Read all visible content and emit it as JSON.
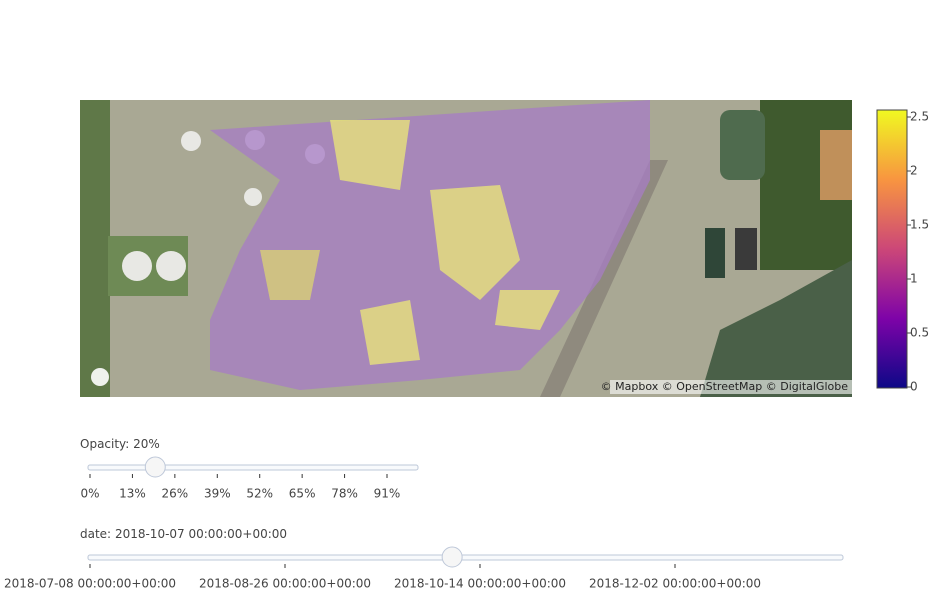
{
  "map": {
    "attribution": "© Mapbox © OpenStreetMap © DigitalGlobe"
  },
  "colorbar": {
    "range": [
      0,
      2.5
    ],
    "ticks": [
      0,
      0.5,
      1,
      1.5,
      2,
      2.5
    ],
    "colors": [
      "#0d0887",
      "#7e03a8",
      "#cc4778",
      "#f89540",
      "#f0f921"
    ]
  },
  "opacity_slider": {
    "prefix": "Opacity:",
    "value": {
      "value": 20,
      "label": "20%"
    },
    "steps": [
      {
        "value": 0,
        "label": "0%"
      },
      {
        "value": 13,
        "label": "13%"
      },
      {
        "value": 26,
        "label": "26%"
      },
      {
        "value": 39,
        "label": "39%"
      },
      {
        "value": 52,
        "label": "52%"
      },
      {
        "value": 65,
        "label": "65%"
      },
      {
        "value": 78,
        "label": "78%"
      },
      {
        "value": 91,
        "label": "91%"
      }
    ]
  },
  "date_slider": {
    "prefix": "date:",
    "value": "2018-10-07 00:00:00+00:00",
    "steps": [
      "2018-07-08 00:00:00+00:00",
      "2018-08-26 00:00:00+00:00",
      "2018-10-14 00:00:00+00:00",
      "2018-12-02 00:00:00+00:00"
    ]
  }
}
